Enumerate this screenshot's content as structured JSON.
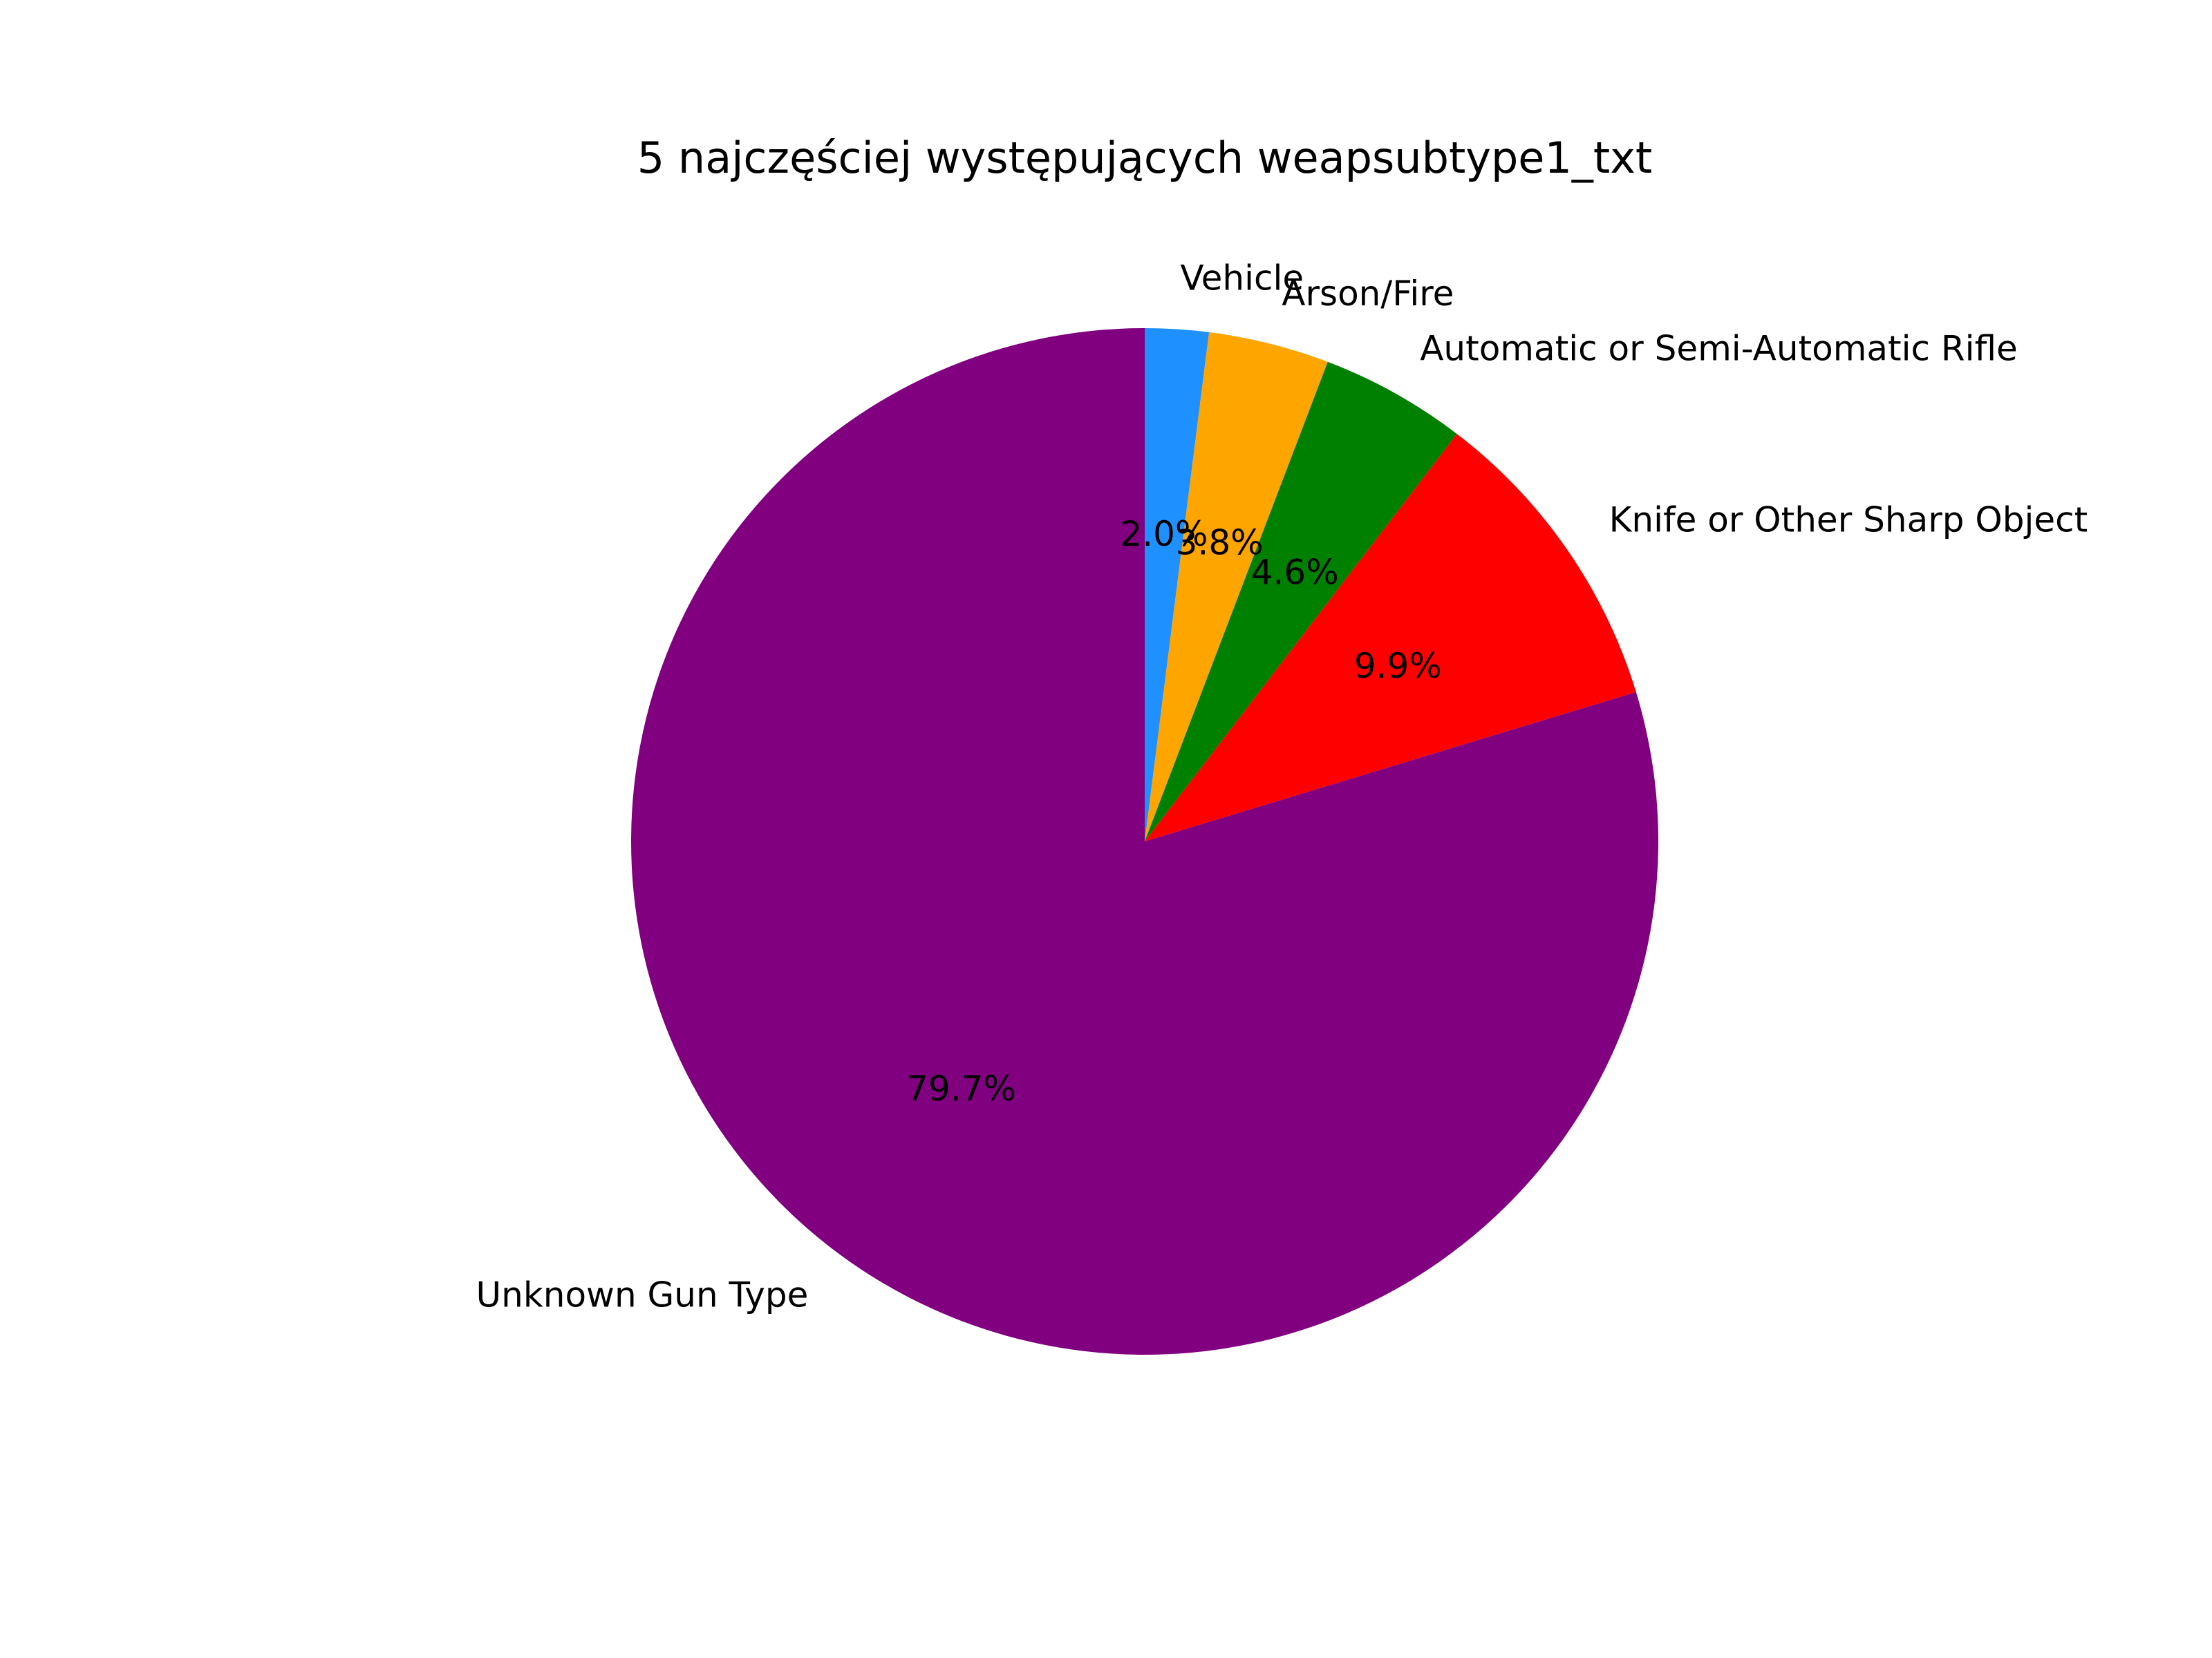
{
  "chart_data": {
    "type": "pie",
    "title": "5 najczęściej występujących weapsubtype1_txt",
    "slices": [
      {
        "label": "Vehicle",
        "value": 2.0,
        "pct_label": "2.0%",
        "color": "#1e90ff"
      },
      {
        "label": "Arson/Fire",
        "value": 3.8,
        "pct_label": "3.8%",
        "color": "#ffa500"
      },
      {
        "label": "Automatic or Semi-Automatic Rifle",
        "value": 4.6,
        "pct_label": "4.6%",
        "color": "#008000"
      },
      {
        "label": "Knife or Other Sharp Object",
        "value": 9.9,
        "pct_label": "9.9%",
        "color": "#ff0000"
      },
      {
        "label": "Unknown Gun Type",
        "value": 79.7,
        "pct_label": "79.7%",
        "color": "#800080"
      }
    ],
    "start_angle_deg": 90,
    "direction": "clockwise"
  }
}
